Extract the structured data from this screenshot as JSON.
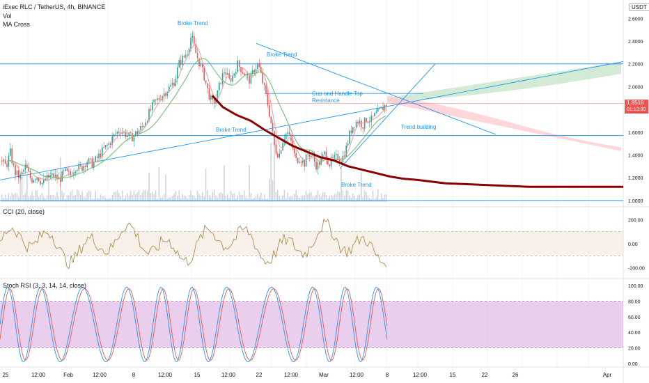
{
  "header": {
    "symbol_title": "iExec RLC / TetherUS, 4h, BINANCE",
    "vol_label": "Vol",
    "ma_label": "MA Cross",
    "currency_badge": "USDT"
  },
  "price_badge": {
    "value": "1.8518",
    "countdown": "01:13:30",
    "color": "#ef5350"
  },
  "price_axis_ticks": [
    "2.6000",
    "2.4000",
    "2.2000",
    "2.0000",
    "1.8000",
    "1.6000",
    "1.4000",
    "1.2000",
    "1.0000"
  ],
  "cci_panel": {
    "label": "CCI (20, close)",
    "ticks": [
      "200.00",
      "0.00",
      "-200.00"
    ]
  },
  "stoch_panel": {
    "label": "Stoch RSI (3, 3, 14, 14, close)",
    "ticks": [
      "100.00",
      "80.00",
      "60.00",
      "40.00",
      "20.00",
      "0.00"
    ]
  },
  "time_axis_labels": [
    "25",
    "12:00",
    "Feb",
    "12:00",
    "8",
    "12:00",
    "15",
    "12:00",
    "22",
    "12:00",
    "Mar",
    "12:00",
    "8",
    "12:00",
    "15",
    "22",
    "26",
    "Apr"
  ],
  "annotations": [
    "Broke Trend",
    "Broke Trend",
    "Cup and Handle Top\nResistance",
    "Broke Trend",
    "Trend building",
    "Broke Trend"
  ],
  "colors": {
    "up": "#26a69a",
    "down": "#ef5350",
    "trendline": "#2196f3",
    "ma_long": "#8b0000",
    "cci": "#b08a50",
    "stoch_k": "#2196f3",
    "stoch_d": "#ef5350",
    "stoch_band": "#e1bee7",
    "cloud_green": "#c8e6c9",
    "cloud_red": "#ffcdd2"
  },
  "chart_data": {
    "type": "candlestick",
    "symbol": "iExec RLC / TetherUS",
    "interval": "4h",
    "exchange": "BINANCE",
    "y_range": [
      0.95,
      2.7
    ],
    "last_price": 1.8518,
    "price_path": [
      [
        0,
        1.35
      ],
      [
        8,
        1.3
      ],
      [
        14,
        1.42
      ],
      [
        20,
        1.25
      ],
      [
        28,
        1.2
      ],
      [
        36,
        1.3
      ],
      [
        44,
        1.18
      ],
      [
        52,
        1.22
      ],
      [
        60,
        1.15
      ],
      [
        68,
        1.2
      ],
      [
        76,
        1.22
      ],
      [
        84,
        1.18
      ],
      [
        92,
        1.25
      ],
      [
        100,
        1.22
      ],
      [
        108,
        1.3
      ],
      [
        116,
        1.28
      ],
      [
        124,
        1.35
      ],
      [
        132,
        1.32
      ],
      [
        140,
        1.38
      ],
      [
        148,
        1.45
      ],
      [
        156,
        1.5
      ],
      [
        164,
        1.58
      ],
      [
        172,
        1.62
      ],
      [
        180,
        1.58
      ],
      [
        188,
        1.55
      ],
      [
        196,
        1.6
      ],
      [
        204,
        1.65
      ],
      [
        212,
        1.75
      ],
      [
        220,
        1.85
      ],
      [
        228,
        1.9
      ],
      [
        236,
        1.95
      ],
      [
        244,
        2.0
      ],
      [
        250,
        2.05
      ],
      [
        256,
        2.2
      ],
      [
        262,
        2.25
      ],
      [
        268,
        2.3
      ],
      [
        274,
        2.45
      ],
      [
        280,
        2.3
      ],
      [
        286,
        2.2
      ],
      [
        292,
        2.1
      ],
      [
        298,
        1.95
      ],
      [
        304,
        1.85
      ],
      [
        310,
        1.9
      ],
      [
        316,
        2.05
      ],
      [
        322,
        2.15
      ],
      [
        328,
        2.05
      ],
      [
        334,
        2.1
      ],
      [
        340,
        2.2
      ],
      [
        346,
        2.15
      ],
      [
        352,
        2.1
      ],
      [
        358,
        2.05
      ],
      [
        364,
        2.15
      ],
      [
        370,
        2.2
      ],
      [
        376,
        2.05
      ],
      [
        382,
        1.9
      ],
      [
        388,
        1.7
      ],
      [
        394,
        1.45
      ],
      [
        400,
        1.4
      ],
      [
        406,
        1.55
      ],
      [
        412,
        1.6
      ],
      [
        418,
        1.5
      ],
      [
        424,
        1.35
      ],
      [
        430,
        1.38
      ],
      [
        436,
        1.32
      ],
      [
        442,
        1.42
      ],
      [
        448,
        1.38
      ],
      [
        454,
        1.3
      ],
      [
        460,
        1.35
      ],
      [
        466,
        1.42
      ],
      [
        472,
        1.32
      ],
      [
        478,
        1.36
      ],
      [
        484,
        1.38
      ],
      [
        490,
        1.36
      ],
      [
        496,
        1.45
      ],
      [
        502,
        1.6
      ],
      [
        508,
        1.68
      ],
      [
        514,
        1.7
      ],
      [
        520,
        1.66
      ],
      [
        526,
        1.72
      ],
      [
        532,
        1.7
      ],
      [
        538,
        1.75
      ],
      [
        544,
        1.78
      ],
      [
        550,
        1.82
      ],
      [
        556,
        1.86
      ]
    ],
    "ma_long": [
      [
        305,
        1.92
      ],
      [
        320,
        1.82
      ],
      [
        340,
        1.75
      ],
      [
        360,
        1.7
      ],
      [
        380,
        1.62
      ],
      [
        400,
        1.55
      ],
      [
        420,
        1.48
      ],
      [
        440,
        1.43
      ],
      [
        460,
        1.38
      ],
      [
        480,
        1.35
      ],
      [
        500,
        1.3
      ],
      [
        520,
        1.27
      ],
      [
        540,
        1.24
      ],
      [
        560,
        1.21
      ],
      [
        580,
        1.19
      ],
      [
        600,
        1.18
      ],
      [
        640,
        1.15
      ],
      [
        680,
        1.14
      ],
      [
        720,
        1.13
      ],
      [
        760,
        1.12
      ],
      [
        800,
        1.12
      ],
      [
        840,
        1.12
      ],
      [
        895,
        1.12
      ]
    ],
    "horizontal_levels": [
      2.2,
      1.57,
      1.0
    ],
    "trendlines": [
      {
        "from": [
          0,
          1.18
        ],
        "to": [
          895,
          2.22
        ]
      },
      {
        "from": [
          368,
          2.38
        ],
        "to": [
          712,
          1.58
        ]
      },
      {
        "from": [
          488,
          1.28
        ],
        "to": [
          625,
          2.2
        ]
      },
      {
        "from": [
          380,
          1.94
        ],
        "to": [
          608,
          1.94
        ]
      }
    ]
  }
}
